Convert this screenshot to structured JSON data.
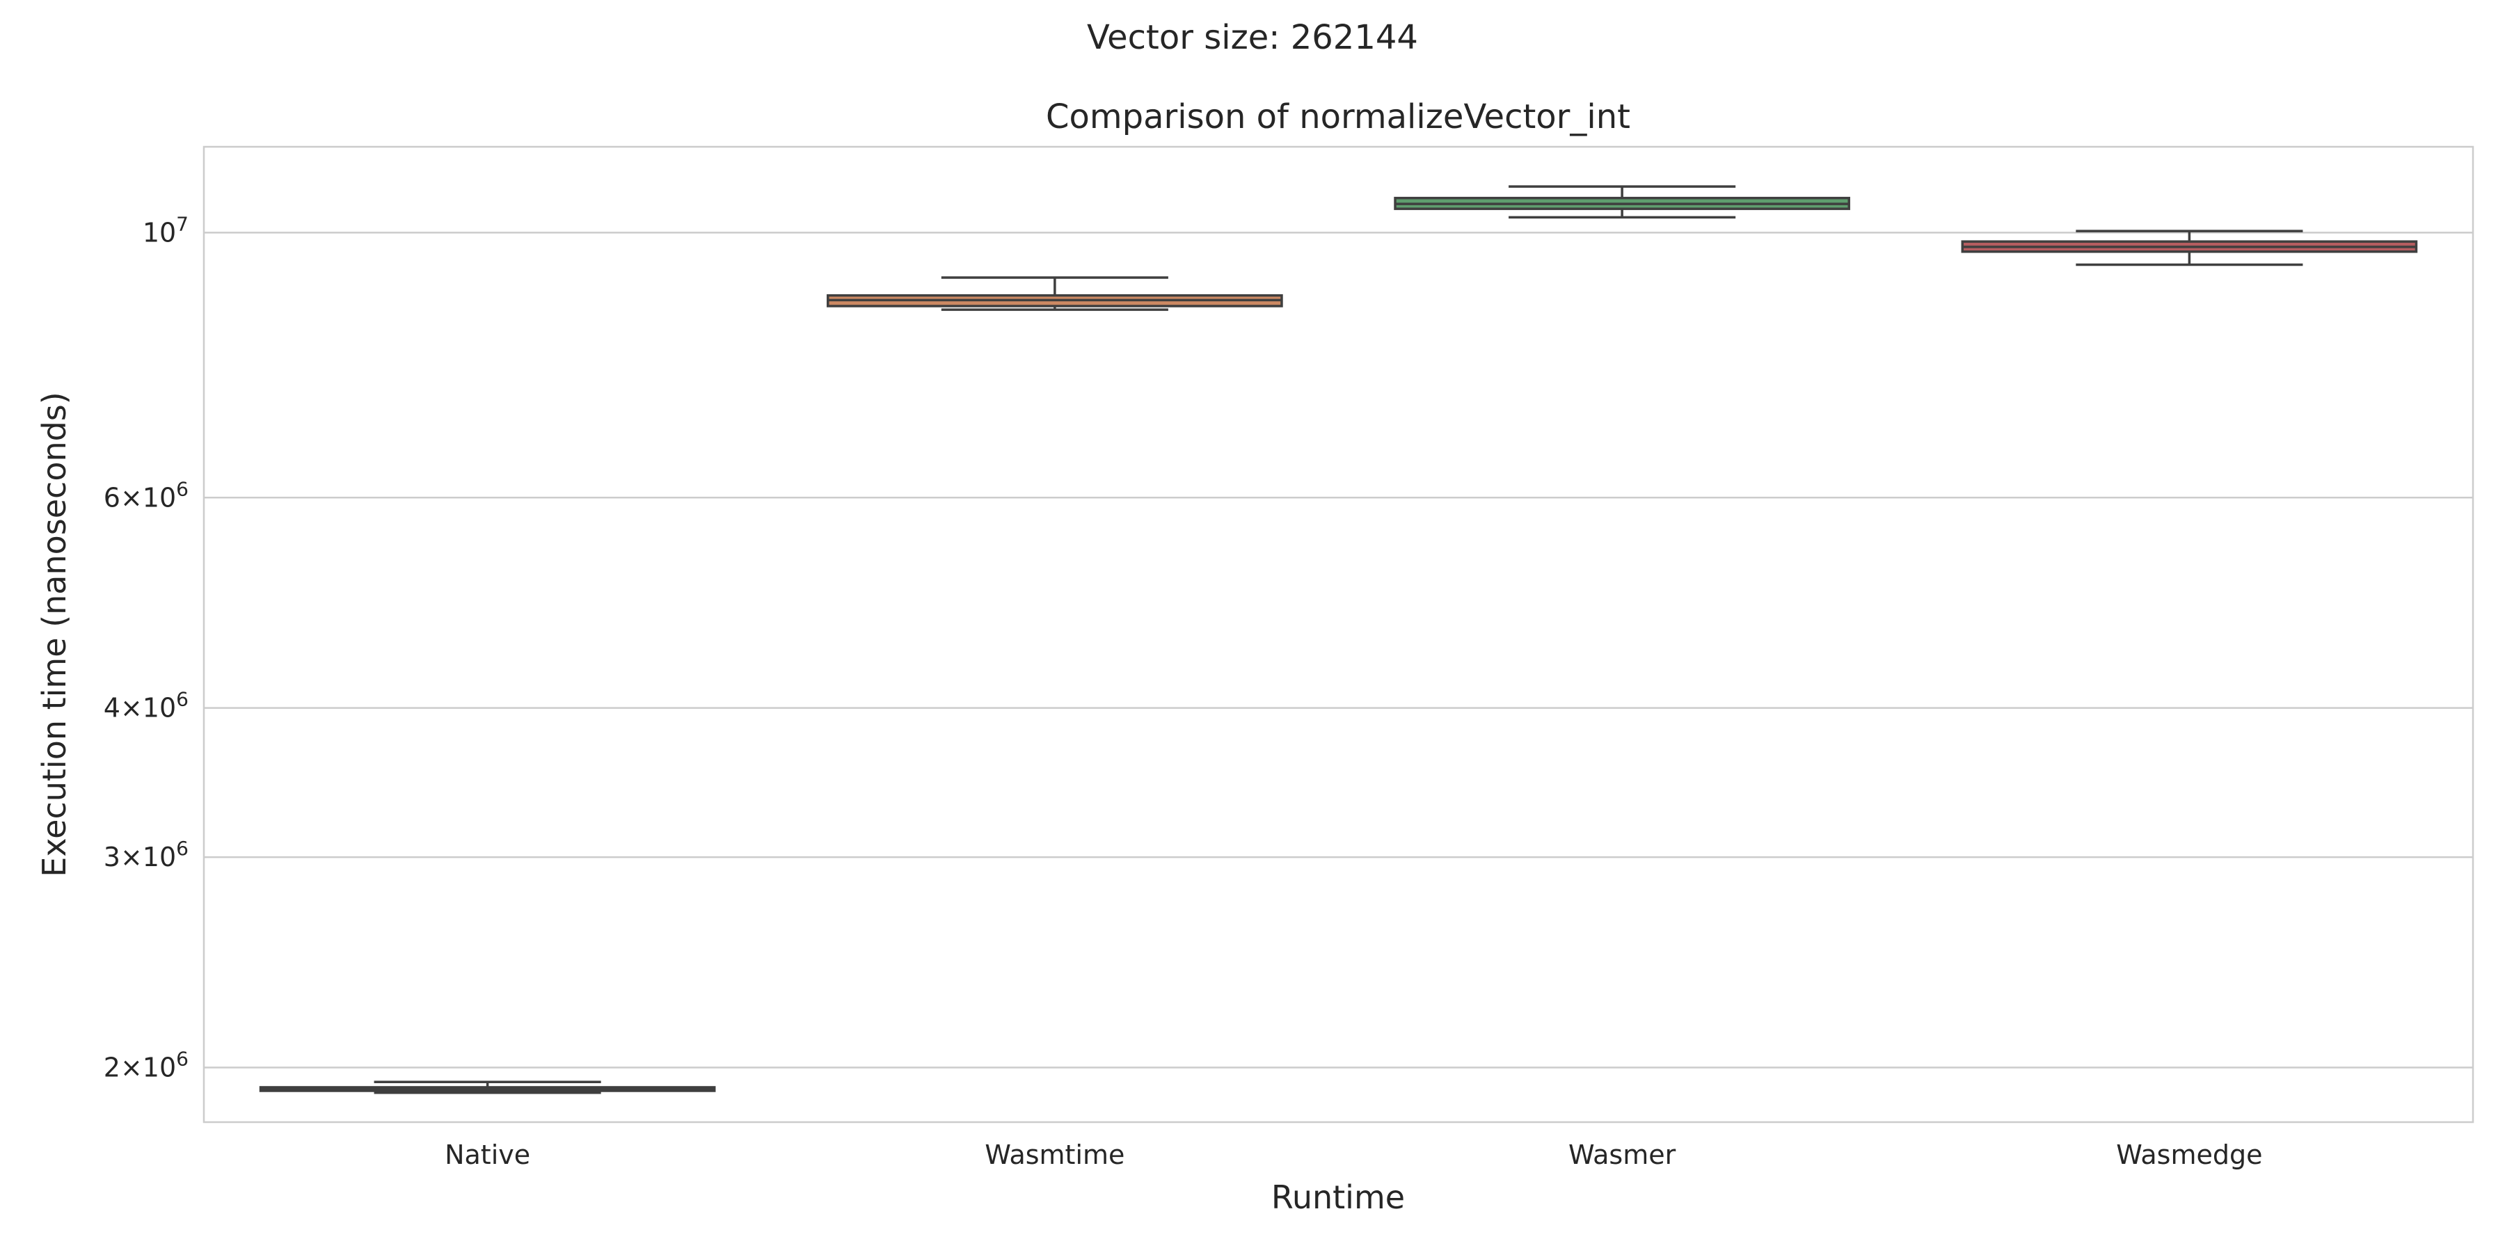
{
  "figure": {
    "suptitle": "Vector size: 262144"
  },
  "chart_data": {
    "type": "box",
    "title": "Comparison of normalizeVector_int",
    "xlabel": "Runtime",
    "ylabel": "Execution time (nanoseconds)",
    "yscale": "log",
    "ylim": [
      1800000,
      11800000
    ],
    "grid": true,
    "categories": [
      "Native",
      "Wasmtime",
      "Wasmer",
      "Wasmedge"
    ],
    "yticks": [
      {
        "value": 2000000,
        "mantissa": "2",
        "base": "×10",
        "exp": "6"
      },
      {
        "value": 3000000,
        "mantissa": "3",
        "base": "×10",
        "exp": "6"
      },
      {
        "value": 4000000,
        "mantissa": "4",
        "base": "×10",
        "exp": "6"
      },
      {
        "value": 6000000,
        "mantissa": "6",
        "base": "×10",
        "exp": "6"
      },
      {
        "value": 10000000,
        "mantissa": "",
        "base": "10",
        "exp": "7"
      }
    ],
    "boxes": [
      {
        "name": "Native",
        "whisker_low": 1905000,
        "q1": 1912000,
        "median": 1918000,
        "q3": 1925000,
        "whisker_high": 1945000,
        "color": "#4c4c50"
      },
      {
        "name": "Wasmtime",
        "whisker_low": 8620000,
        "q1": 8680000,
        "median": 8780000,
        "q3": 8860000,
        "whisker_high": 9170000,
        "color": "#cc8963"
      },
      {
        "name": "Wasmer",
        "whisker_low": 10300000,
        "q1": 10470000,
        "median": 10570000,
        "q3": 10690000,
        "whisker_high": 10930000,
        "color": "#5f9e6e"
      },
      {
        "name": "Wasmedge",
        "whisker_low": 9400000,
        "q1": 9640000,
        "median": 9730000,
        "q3": 9830000,
        "whisker_high": 10030000,
        "color": "#b55d60"
      }
    ]
  }
}
